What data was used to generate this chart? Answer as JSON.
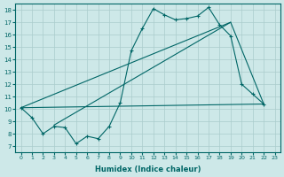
{
  "xlabel": "Humidex (Indice chaleur)",
  "background_color": "#cde8e8",
  "grid_color": "#aacccc",
  "line_color": "#006666",
  "xlim": [
    -0.5,
    23.5
  ],
  "ylim": [
    6.5,
    18.5
  ],
  "xticks": [
    0,
    1,
    2,
    3,
    4,
    5,
    6,
    7,
    8,
    9,
    10,
    11,
    12,
    13,
    14,
    15,
    16,
    17,
    18,
    19,
    20,
    21,
    22,
    23
  ],
  "yticks": [
    7,
    8,
    9,
    10,
    11,
    12,
    13,
    14,
    15,
    16,
    17,
    18
  ],
  "line1_x": [
    0,
    1,
    2,
    3,
    4,
    5,
    6,
    7,
    8,
    9,
    10,
    11,
    12,
    13,
    14,
    15,
    16,
    17,
    18,
    19,
    20,
    21,
    22
  ],
  "line1_y": [
    10.1,
    9.3,
    8.0,
    8.6,
    8.5,
    7.2,
    7.8,
    7.6,
    8.6,
    10.5,
    14.7,
    16.5,
    18.1,
    17.6,
    17.2,
    17.3,
    17.5,
    18.2,
    16.8,
    15.9,
    12.0,
    11.2,
    10.4
  ],
  "line2_x": [
    0,
    19
  ],
  "line2_y": [
    10.1,
    17.0
  ],
  "line3_x": [
    0,
    22
  ],
  "line3_y": [
    10.1,
    10.4
  ],
  "line4_x": [
    3,
    19,
    22
  ],
  "line4_y": [
    8.7,
    17.0,
    10.4
  ]
}
